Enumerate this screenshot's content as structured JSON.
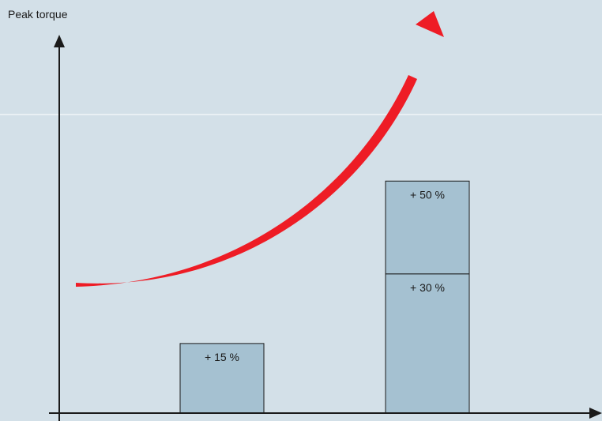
{
  "chart_data": {
    "type": "bar",
    "stacked": true,
    "ylabel": "Peak torque",
    "xlabel": "",
    "bars": [
      {
        "segments": [
          {
            "label": "+ 15 %",
            "value": 15
          }
        ]
      },
      {
        "segments": [
          {
            "label": "+ 30 %",
            "value": 30
          },
          {
            "label": "+ 50 %",
            "value": 20
          }
        ]
      }
    ],
    "annotation": {
      "type": "arrow",
      "shape": "rising curve",
      "color": "#ee1c25"
    },
    "colors": {
      "background": "#d3e0e8",
      "bar_fill": "#a5c1d1",
      "bar_stroke": "#1a1a1a",
      "axis": "#1a1a1a",
      "accent_line": "#ffffff"
    },
    "grid": false
  }
}
